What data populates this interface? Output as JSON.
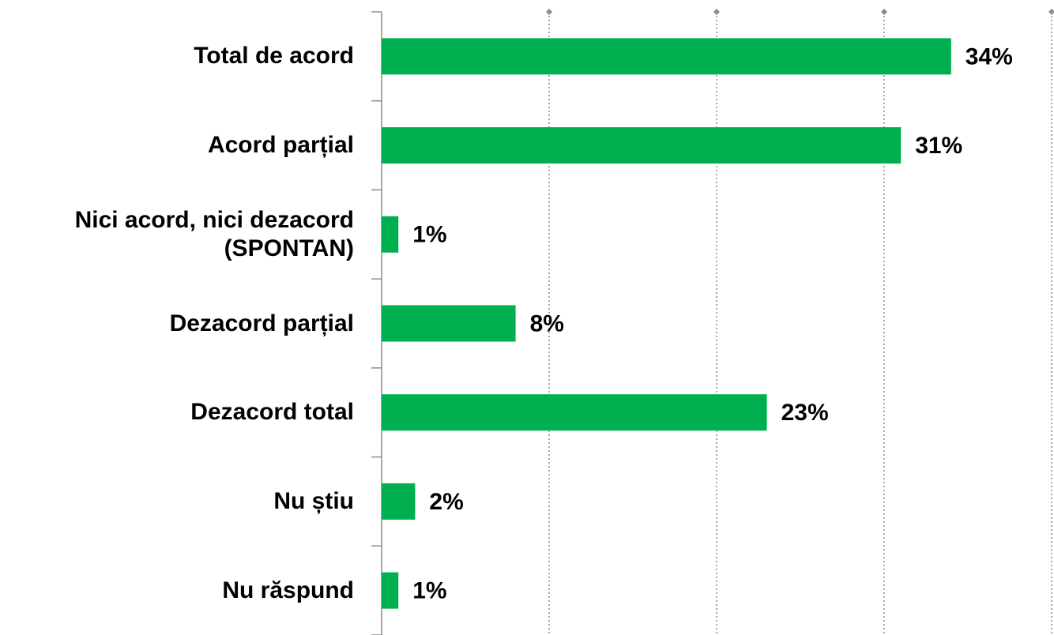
{
  "chart_data": {
    "type": "bar",
    "orientation": "horizontal",
    "categories": [
      "Total de acord",
      "Acord parțial",
      "Nici acord, nici dezacord\n(SPONTAN)",
      "Dezacord parțial",
      "Dezacord total",
      "Nu știu",
      "Nu răspund"
    ],
    "values": [
      34,
      31,
      1,
      8,
      23,
      2,
      1
    ],
    "value_labels": [
      "34%",
      "31%",
      "1%",
      "8%",
      "23%",
      "2%",
      "1%"
    ],
    "color": "#00b050",
    "xlim": [
      0,
      40
    ],
    "xticks": [
      0,
      10,
      20,
      30,
      40
    ],
    "grid": true
  }
}
